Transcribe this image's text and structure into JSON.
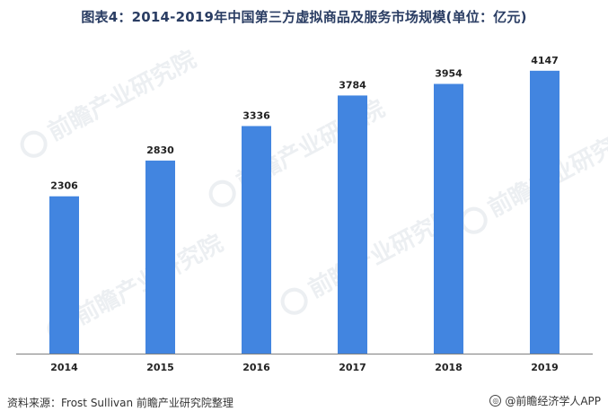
{
  "title": "图表4：2014-2019年中国第三方虚拟商品及服务市场规模(单位：亿元)",
  "footer": {
    "source": "资料来源：Frost Sullivan 前瞻产业研究院整理",
    "brand": "@前瞻经济学人APP"
  },
  "watermark": {
    "text": "前瞻产业研究院",
    "logo_icon": "qianzhan-logo-icon"
  },
  "colors": {
    "bar": "#4285e0",
    "axis": "#7f7f7f",
    "title": "#2a3d63"
  },
  "chart_data": {
    "type": "bar",
    "title": "图表4：2014-2019年中国第三方虚拟商品及服务市场规模(单位：亿元)",
    "categories": [
      "2014",
      "2015",
      "2016",
      "2017",
      "2018",
      "2019"
    ],
    "values": [
      2306,
      2830,
      3336,
      3784,
      3954,
      4147
    ],
    "xlabel": "",
    "ylabel": "",
    "ylim": [
      0,
      4500
    ],
    "grid": false,
    "legend": "none",
    "data_labels": true
  }
}
